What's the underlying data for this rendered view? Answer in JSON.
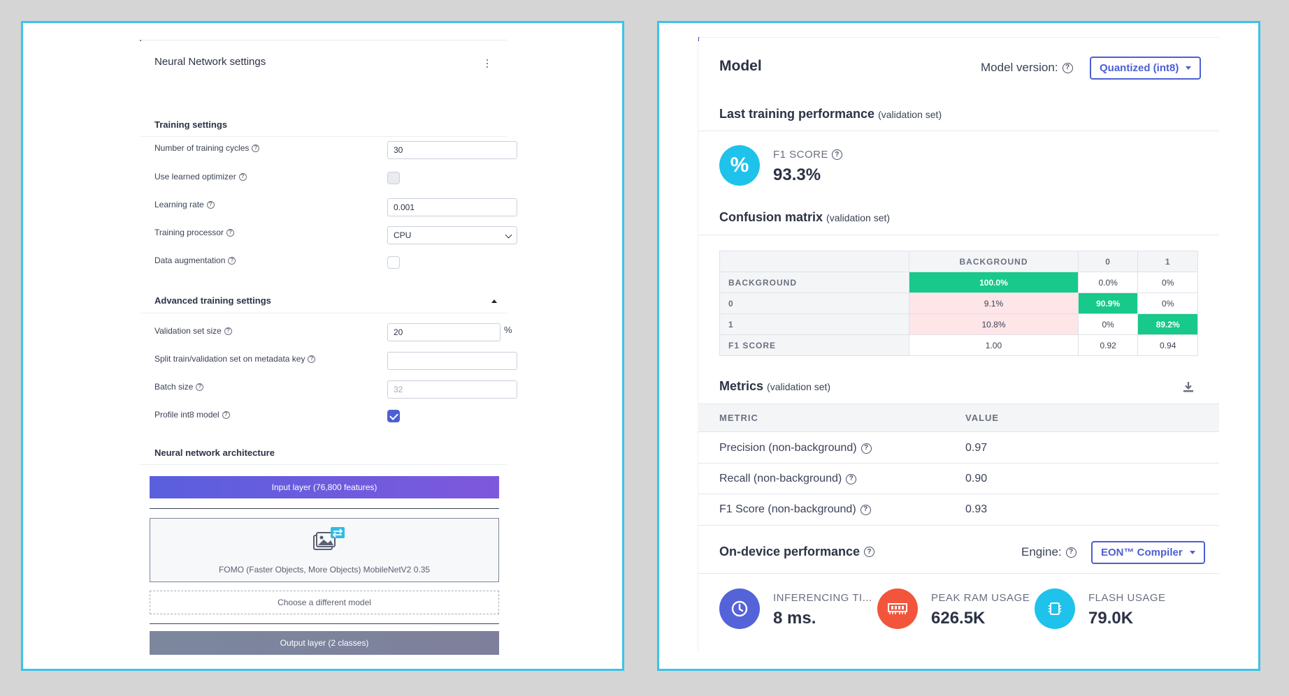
{
  "left": {
    "title": "Neural Network settings",
    "training_settings": {
      "heading": "Training settings",
      "cycles_label": "Number of training cycles",
      "cycles_value": "30",
      "optimizer_label": "Use learned optimizer",
      "learning_rate_label": "Learning rate",
      "learning_rate_value": "0.001",
      "processor_label": "Training processor",
      "processor_value": "CPU",
      "augmentation_label": "Data augmentation"
    },
    "advanced": {
      "heading": "Advanced training settings",
      "validation_label": "Validation set size",
      "validation_value": "20",
      "validation_unit": "%",
      "split_label": "Split train/validation set on metadata key",
      "split_value": "",
      "batch_label": "Batch size",
      "batch_placeholder": "32",
      "profile_label": "Profile int8 model"
    },
    "architecture": {
      "heading": "Neural network architecture",
      "input_layer": "Input layer (76,800 features)",
      "model_name": "FOMO (Faster Objects, More Objects) MobileNetV2 0.35",
      "choose_model": "Choose a different model",
      "output_layer": "Output layer (2 classes)"
    }
  },
  "right": {
    "title": "Model",
    "model_version_label": "Model version:",
    "model_version_value": "Quantized (int8)",
    "last_training": {
      "heading": "Last training performance",
      "sub": "(validation set)"
    },
    "f1": {
      "label": "F1 SCORE",
      "value": "93.3%",
      "icon_text": "%"
    },
    "confusion": {
      "heading": "Confusion matrix",
      "sub": "(validation set)",
      "columns": [
        "BACKGROUND",
        "0",
        "1"
      ],
      "rows": [
        {
          "label": "BACKGROUND",
          "cells": [
            "100.0%",
            "0.0%",
            "0%"
          ]
        },
        {
          "label": "0",
          "cells": [
            "9.1%",
            "90.9%",
            "0%"
          ]
        },
        {
          "label": "1",
          "cells": [
            "10.8%",
            "0%",
            "89.2%"
          ]
        },
        {
          "label": "F1 SCORE",
          "cells": [
            "1.00",
            "0.92",
            "0.94"
          ]
        }
      ]
    },
    "metrics": {
      "heading": "Metrics",
      "sub": "(validation set)",
      "col_metric": "METRIC",
      "col_value": "VALUE",
      "rows": [
        {
          "label": "Precision (non-background)",
          "value": "0.97"
        },
        {
          "label": "Recall (non-background)",
          "value": "0.90"
        },
        {
          "label": "F1 Score (non-background)",
          "value": "0.93"
        }
      ]
    },
    "on_device": {
      "heading": "On-device performance",
      "engine_label": "Engine:",
      "engine_value": "EON™ Compiler",
      "inferencing": {
        "label": "INFERENCING TI...",
        "value": "8 ms."
      },
      "ram": {
        "label": "PEAK RAM USAGE",
        "value": "626.5K"
      },
      "flash": {
        "label": "FLASH USAGE",
        "value": "79.0K"
      }
    },
    "colors": {
      "accent": "#4d5fd4",
      "f1_circle": "#1fc2ea",
      "inferencing_circle": "#5563d8",
      "ram_circle": "#f2553c",
      "flash_circle": "#1fc2ea",
      "matrix_correct": "#17c98a",
      "matrix_incorrect": "#fde5e8"
    }
  }
}
